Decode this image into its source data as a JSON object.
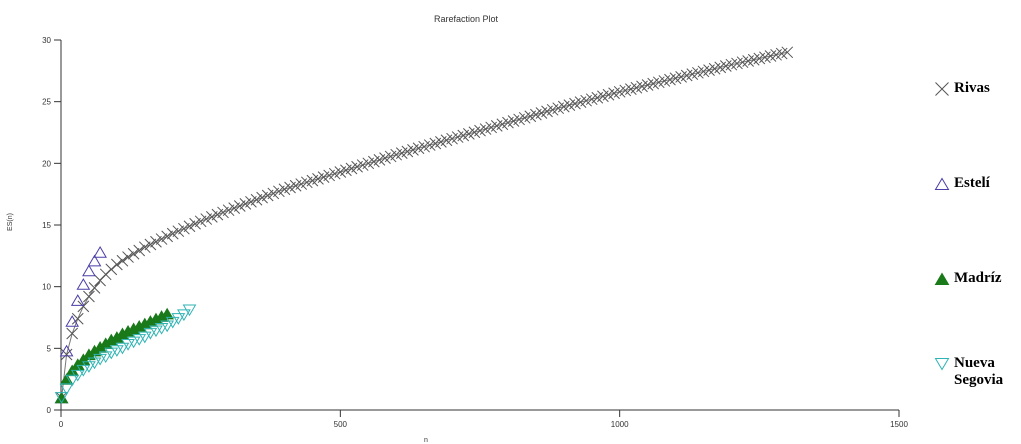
{
  "chart_data": {
    "type": "scatter",
    "title": "Rarefaction Plot",
    "xlabel": "n",
    "ylabel": "ES(n)",
    "xlim": [
      0,
      1500
    ],
    "ylim": [
      0,
      30
    ],
    "xticks": [
      0,
      500,
      1000,
      1500
    ],
    "yticks": [
      0,
      5,
      10,
      15,
      20,
      25,
      30
    ],
    "grid": false,
    "legend_position": "right",
    "series": [
      {
        "name": "Rivas",
        "marker": "x",
        "color": "#555555",
        "x": [
          1,
          10,
          20,
          30,
          40,
          50,
          60,
          70,
          80,
          100,
          120,
          150,
          200,
          250,
          300,
          400,
          500,
          600,
          700,
          800,
          900,
          1000,
          1100,
          1200,
          1300
        ],
        "y": [
          1.0,
          4.5,
          6.2,
          7.4,
          8.4,
          9.2,
          9.9,
          10.5,
          11.0,
          11.8,
          12.4,
          13.2,
          14.3,
          15.3,
          16.2,
          17.9,
          19.3,
          20.7,
          22.0,
          23.3,
          24.6,
          25.8,
          26.9,
          28.0,
          29.0
        ]
      },
      {
        "name": "Estelí",
        "marker": "triangle-up",
        "color": "#4a3ea8",
        "x": [
          1,
          10,
          20,
          30,
          40,
          50,
          60,
          70
        ],
        "y": [
          1.0,
          4.8,
          7.2,
          8.9,
          10.2,
          11.3,
          12.1,
          12.8
        ]
      },
      {
        "name": "Madríz",
        "marker": "triangle-up-filled",
        "color": "#1a7a1a",
        "x": [
          1,
          10,
          20,
          30,
          40,
          50,
          60,
          70,
          80,
          90,
          100,
          110,
          120,
          130,
          140,
          150,
          160,
          170,
          180,
          190
        ],
        "y": [
          1.0,
          2.5,
          3.2,
          3.7,
          4.1,
          4.5,
          4.8,
          5.1,
          5.4,
          5.7,
          5.9,
          6.2,
          6.4,
          6.6,
          6.8,
          7.0,
          7.2,
          7.4,
          7.6,
          7.8
        ]
      },
      {
        "name": "Nueva\nSegovia",
        "marker": "triangle-down",
        "color": "#2fb3b3",
        "x": [
          1,
          10,
          20,
          30,
          40,
          50,
          60,
          70,
          80,
          90,
          100,
          110,
          120,
          130,
          140,
          150,
          160,
          170,
          180,
          190,
          200,
          210,
          220,
          230
        ],
        "y": [
          1.0,
          1.7,
          2.4,
          2.8,
          3.2,
          3.5,
          3.8,
          4.1,
          4.3,
          4.6,
          4.8,
          5.0,
          5.3,
          5.5,
          5.7,
          5.9,
          6.2,
          6.4,
          6.6,
          6.8,
          7.1,
          7.4,
          7.7,
          8.1
        ]
      }
    ]
  }
}
